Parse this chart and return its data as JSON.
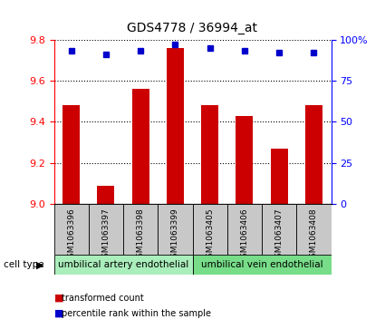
{
  "title": "GDS4778 / 36994_at",
  "samples": [
    "GSM1063396",
    "GSM1063397",
    "GSM1063398",
    "GSM1063399",
    "GSM1063405",
    "GSM1063406",
    "GSM1063407",
    "GSM1063408"
  ],
  "transformed_counts": [
    9.48,
    9.09,
    9.56,
    9.76,
    9.48,
    9.43,
    9.27,
    9.48
  ],
  "percentile_ranks": [
    93,
    91,
    93,
    97,
    95,
    93,
    92,
    92
  ],
  "ylim_left": [
    9.0,
    9.8
  ],
  "ylim_right": [
    0,
    100
  ],
  "yticks_left": [
    9.0,
    9.2,
    9.4,
    9.6,
    9.8
  ],
  "yticks_right": [
    0,
    25,
    50,
    75,
    100
  ],
  "ytick_labels_right": [
    "0",
    "25",
    "50",
    "75",
    "100%"
  ],
  "bar_color": "#cc0000",
  "dot_color": "#0000cc",
  "cell_types": [
    {
      "label": "umbilical artery endothelial",
      "start": 0,
      "end": 4,
      "color": "#aaeebb"
    },
    {
      "label": "umbilical vein endothelial",
      "start": 4,
      "end": 8,
      "color": "#77dd88"
    }
  ],
  "cell_type_label": "cell type",
  "legend_items": [
    {
      "label": "transformed count",
      "color": "#cc0000"
    },
    {
      "label": "percentile rank within the sample",
      "color": "#0000cc"
    }
  ],
  "background_color": "#ffffff",
  "tick_area_color": "#c8c8c8",
  "bar_width": 0.5
}
